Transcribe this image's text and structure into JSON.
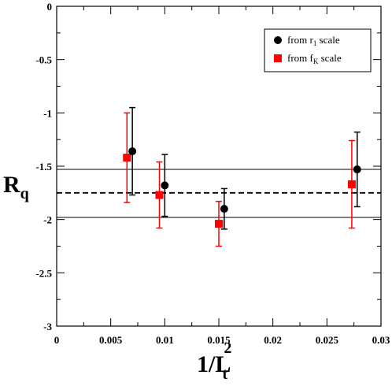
{
  "chart_data": {
    "type": "scatter",
    "xlabel": {
      "main": "1/L",
      "sub": "t",
      "sup": "2"
    },
    "ylabel": {
      "main": "R",
      "sub": "q"
    },
    "xlim": [
      0,
      0.03
    ],
    "ylim": [
      -3,
      0
    ],
    "xticks": [
      "0",
      "0.005",
      "0.01",
      "0.015",
      "0.02",
      "0.025",
      "0.03"
    ],
    "yticks": [
      "0",
      "-0.5",
      "-1",
      "-1.5",
      "-2",
      "-2.5",
      "-3"
    ],
    "grid": false,
    "legend_position": "top-right",
    "series": [
      {
        "name": {
          "main": "from r",
          "sub": "1",
          "tail": " scale"
        },
        "color": "#000000",
        "marker": "circle",
        "x": [
          0.007,
          0.01,
          0.0155,
          0.0278
        ],
        "y": [
          -1.36,
          -1.68,
          -1.9,
          -1.53
        ],
        "err": [
          0.41,
          0.29,
          0.19,
          0.35
        ]
      },
      {
        "name": {
          "main": "from f",
          "sub": "K",
          "tail": " scale"
        },
        "color": "#ff0000",
        "marker": "square",
        "x": [
          0.0065,
          0.0095,
          0.015,
          0.0273
        ],
        "y": [
          -1.42,
          -1.77,
          -2.04,
          -1.67
        ],
        "err": [
          0.42,
          0.31,
          0.21,
          0.41
        ]
      }
    ],
    "hlines": [
      {
        "y": -1.53,
        "style": "solid"
      },
      {
        "y": -1.75,
        "style": "dashed"
      },
      {
        "y": -1.98,
        "style": "solid"
      }
    ]
  }
}
